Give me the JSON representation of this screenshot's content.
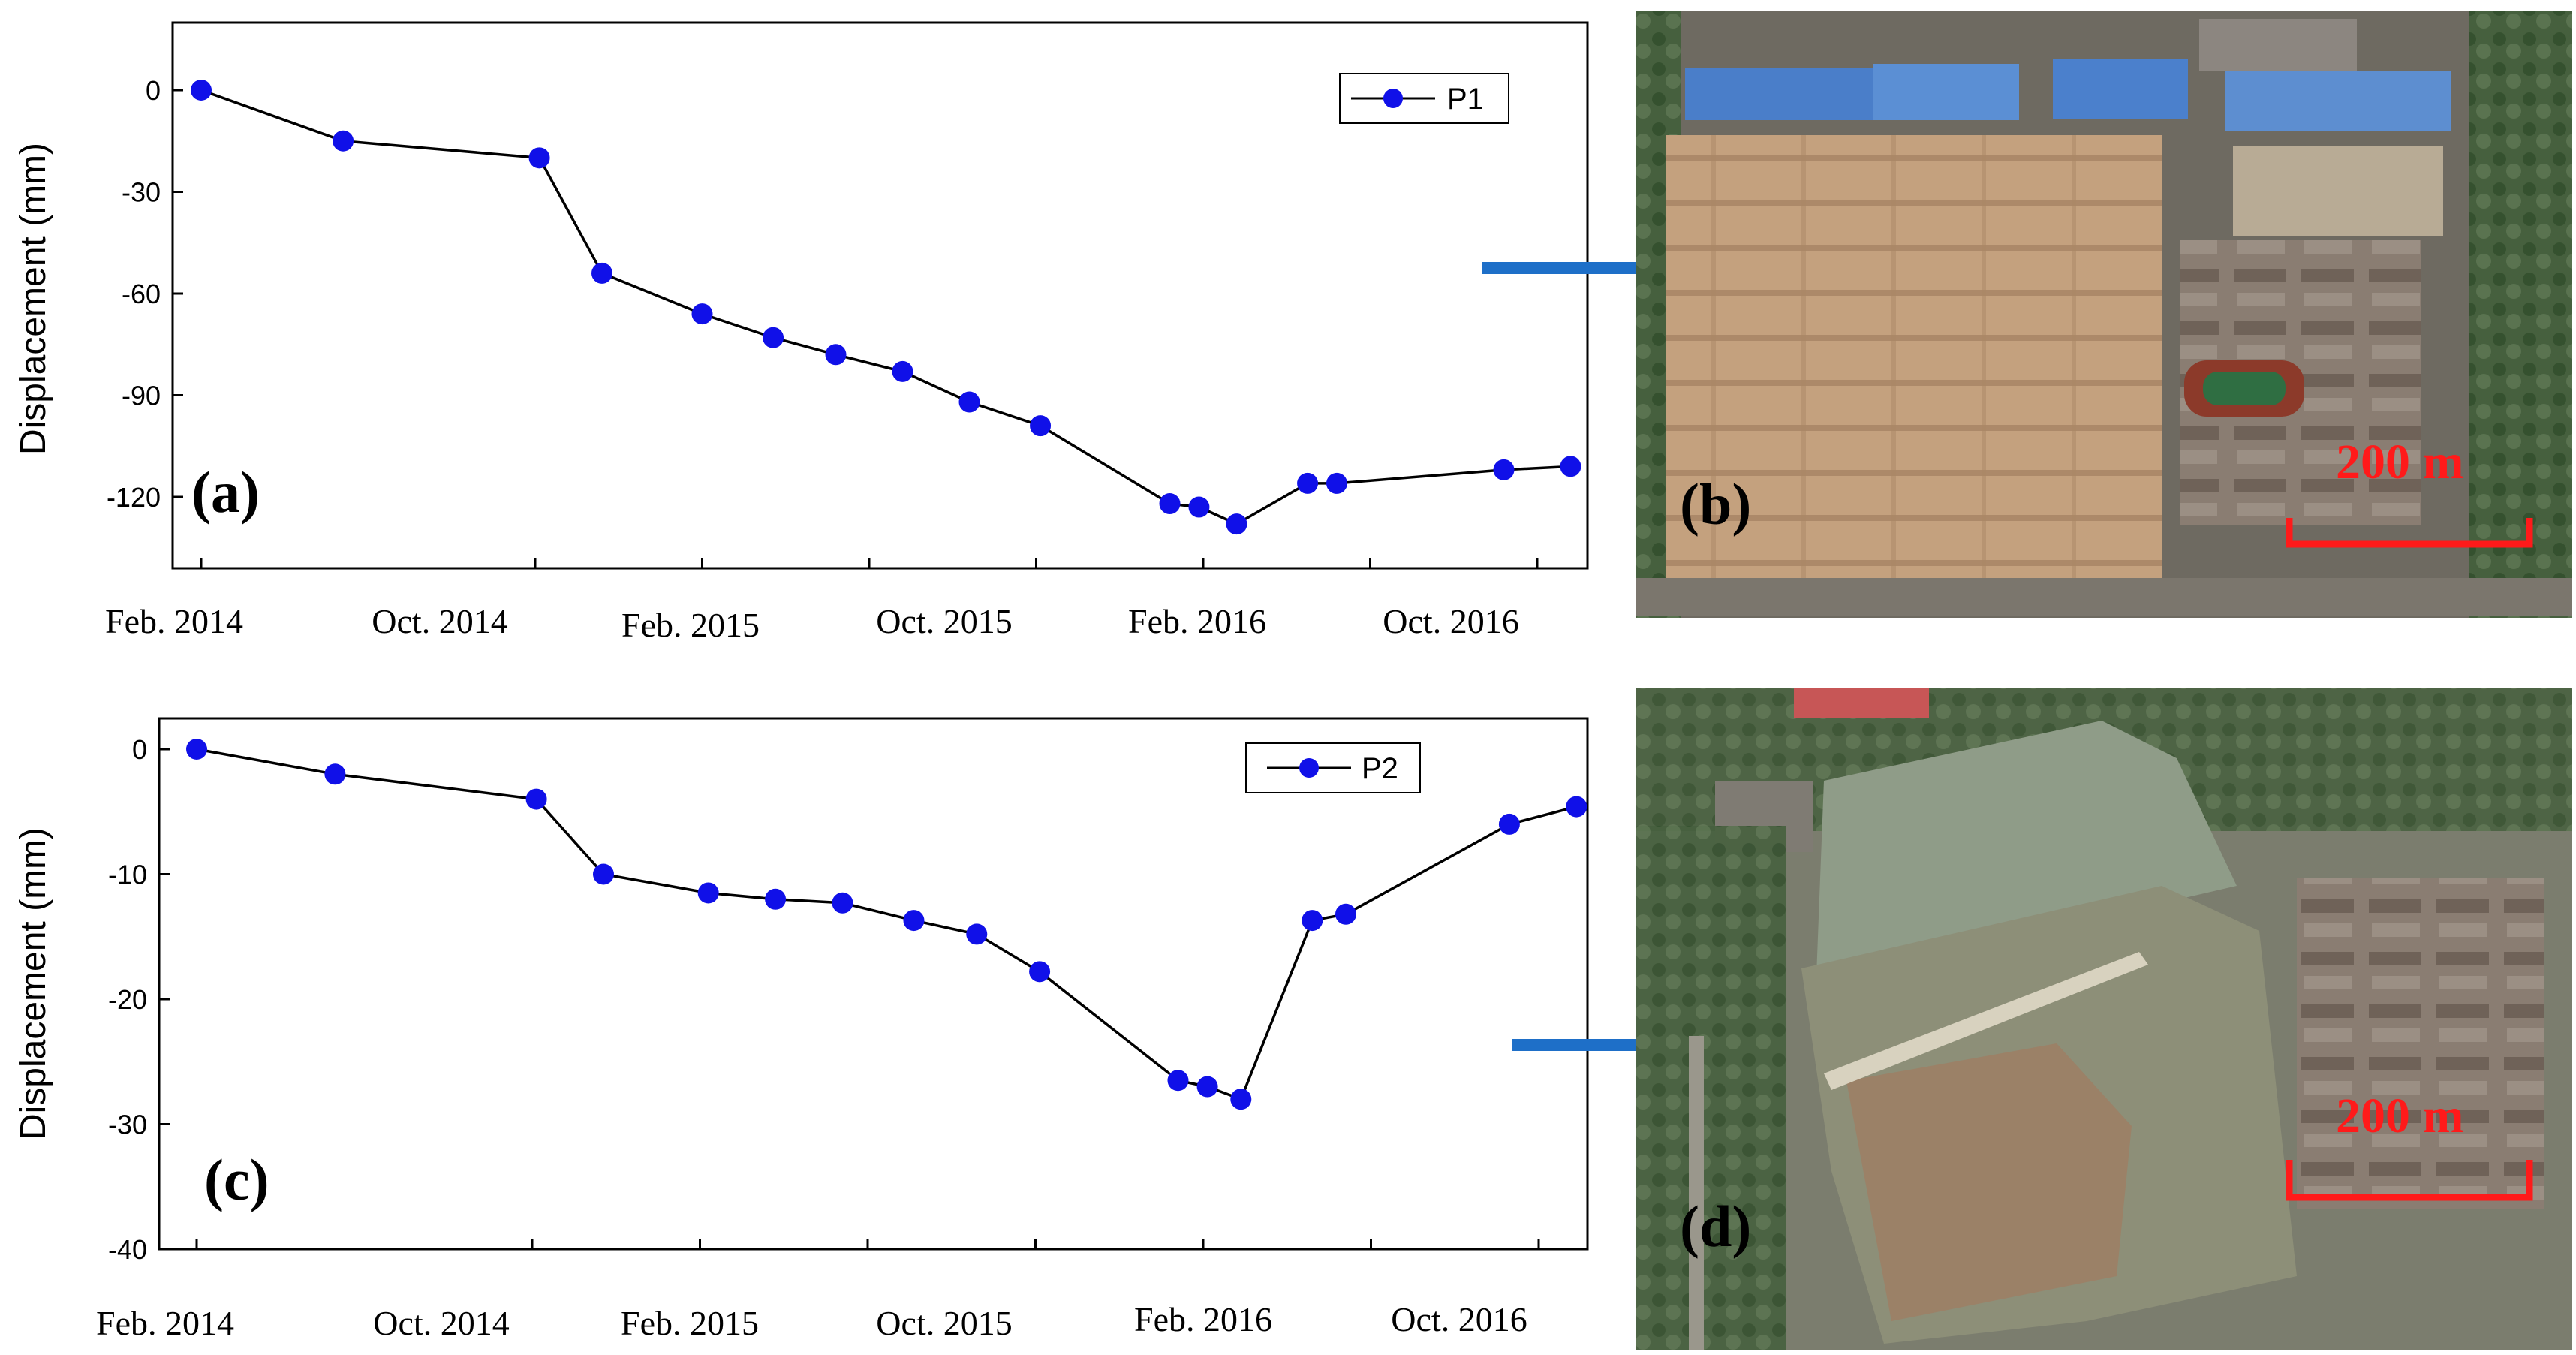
{
  "colors": {
    "marker": "#1010e8",
    "line": "#000000",
    "arrow": "#1e6fc8",
    "scale": "#ff1a1a"
  },
  "chart_data": [
    {
      "type": "line",
      "panel": "(a)",
      "ylabel": "Displacement (mm)",
      "xlabel": "",
      "ylim": [
        -140,
        20
      ],
      "yticks": [
        0,
        -30,
        -60,
        -90,
        -120
      ],
      "xlim": [
        -0.15,
        33.2
      ],
      "xtick_positions": [
        0,
        8,
        12,
        16,
        20,
        24,
        28,
        32
      ],
      "xtick_labels": [
        "Feb. 2014",
        "",
        "Oct. 2014",
        "",
        "Feb. 2015",
        "Oct. 2015",
        "Feb. 2016",
        "Oct. 2016"
      ],
      "xtick_label_positions": [
        0,
        8,
        12,
        16,
        20,
        24,
        28,
        32
      ],
      "series": [
        {
          "name": "P1",
          "x": [
            0,
            3.4,
            8.1,
            9.6,
            12.0,
            13.7,
            15.2,
            16.8,
            18.4,
            20.1,
            23.2,
            23.9,
            24.8,
            26.5,
            27.2,
            31.2,
            32.8
          ],
          "values": [
            0,
            -15,
            -20,
            -54,
            -66,
            -73,
            -78,
            -83,
            -92,
            -99,
            -122,
            -123,
            -128,
            -116,
            -116,
            -112,
            -111
          ]
        }
      ]
    },
    {
      "type": "line",
      "panel": "(c)",
      "ylabel": "Displacement (mm)",
      "xlabel": "",
      "ylim": [
        -40,
        2.4
      ],
      "yticks": [
        0,
        -10,
        -20,
        -30,
        -40
      ],
      "series": [
        {
          "name": "P2",
          "x": [
            0,
            3.3,
            8.1,
            9.7,
            12.2,
            13.8,
            15.4,
            17.1,
            18.6,
            20.1,
            23.4,
            24.1,
            24.9,
            26.6,
            27.4,
            31.3,
            32.9
          ],
          "values": [
            0,
            -2,
            -4,
            -10,
            -11.5,
            -12,
            -12.3,
            -13.7,
            -14.8,
            -17.8,
            -26.5,
            -27,
            -28,
            -13.7,
            -13.2,
            -6,
            -4.6
          ]
        }
      ]
    }
  ],
  "axis_labels": {
    "a_x": [
      "Feb. 2014",
      "Oct. 2014",
      "Feb. 2015",
      "Oct. 2015",
      "Feb. 2016",
      "Oct. 2016"
    ],
    "c_x": [
      "Feb. 2014",
      "Oct. 2014",
      "Feb. 2015",
      "Oct. 2015",
      "Feb. 2016",
      "Oct. 2016"
    ]
  },
  "panels": {
    "b": {
      "tag": "(b)",
      "scale_label": "200 m"
    },
    "d": {
      "tag": "(d)",
      "scale_label": "200 m"
    }
  }
}
